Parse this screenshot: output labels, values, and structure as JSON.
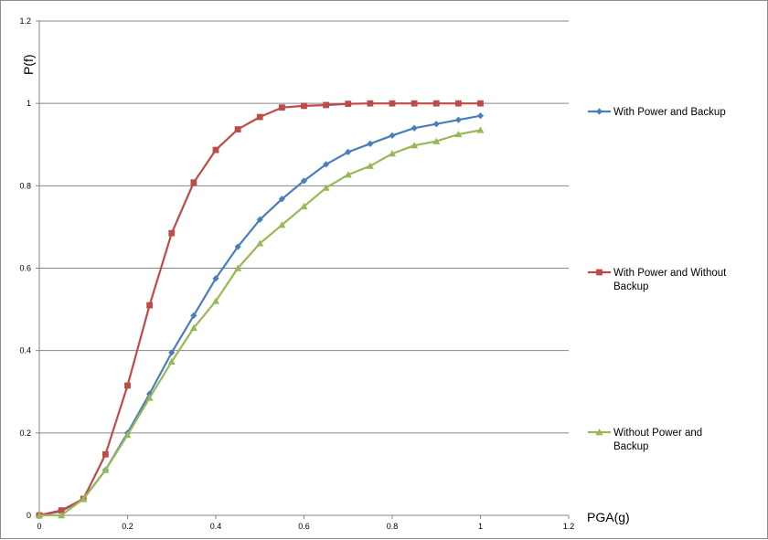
{
  "chart_data": {
    "type": "line",
    "title": "",
    "xlabel": "PGA(g)",
    "ylabel": "P(f)",
    "xlim": [
      0,
      1.2
    ],
    "ylim": [
      0,
      1.2
    ],
    "x_ticks": [
      "0",
      "0.2",
      "0.4",
      "0.6",
      "0.8",
      "1",
      "1.2"
    ],
    "y_ticks": [
      "0",
      "0.2",
      "0.4",
      "0.6",
      "0.8",
      "1",
      "1.2"
    ],
    "grid": "horizontal",
    "legend_position": "right",
    "x": [
      0,
      0.05,
      0.1,
      0.15,
      0.2,
      0.25,
      0.3,
      0.35,
      0.4,
      0.45,
      0.5,
      0.55,
      0.6,
      0.65,
      0.7,
      0.75,
      0.8,
      0.85,
      0.9,
      0.95,
      1.0
    ],
    "series": [
      {
        "name": "With Power and Backup",
        "name_lines": [
          "With Power and Backup"
        ],
        "color": "#4a7ebb",
        "marker": "diamond",
        "values": [
          0.0,
          0.01,
          0.04,
          0.11,
          0.2,
          0.295,
          0.395,
          0.485,
          0.575,
          0.652,
          0.718,
          0.768,
          0.812,
          0.852,
          0.882,
          0.902,
          0.922,
          0.94,
          0.95,
          0.96,
          0.97
        ]
      },
      {
        "name": "With Power and Without Backup",
        "name_lines": [
          "With Power and Without",
          "Backup"
        ],
        "color": "#be4b48",
        "marker": "square",
        "values": [
          0.0,
          0.012,
          0.04,
          0.148,
          0.315,
          0.51,
          0.685,
          0.808,
          0.887,
          0.937,
          0.967,
          0.99,
          0.994,
          0.996,
          0.999,
          1.0,
          1.0,
          1.0,
          1.0,
          1.0,
          1.0
        ]
      },
      {
        "name": "Without Power and Backup",
        "name_lines": [
          "Without Power and",
          "Backup"
        ],
        "color": "#98b954",
        "marker": "triangle",
        "values": [
          0.0,
          0.0,
          0.04,
          0.11,
          0.195,
          0.285,
          0.373,
          0.455,
          0.52,
          0.6,
          0.66,
          0.705,
          0.75,
          0.795,
          0.827,
          0.848,
          0.878,
          0.898,
          0.908,
          0.925,
          0.935
        ]
      }
    ]
  }
}
